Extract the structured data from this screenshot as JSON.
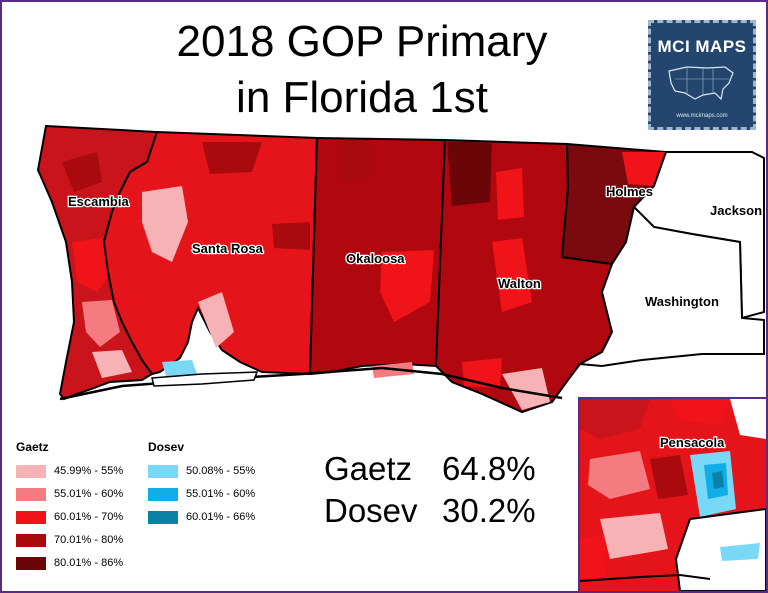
{
  "title": {
    "line1": "2018 GOP Primary",
    "line2": "in Florida 1st"
  },
  "logo": {
    "name": "MCI MAPS",
    "url": "www.mcimaps.com",
    "icon": "us-map-icon"
  },
  "counties": [
    {
      "id": "escambia",
      "label": "Escambia",
      "color": "#c8141a"
    },
    {
      "id": "santa-rosa",
      "label": "Santa Rosa",
      "color": "#e5141a"
    },
    {
      "id": "okaloosa",
      "label": "Okaloosa",
      "color": "#b0080e"
    },
    {
      "id": "walton",
      "label": "Walton",
      "color": "#b0080e"
    },
    {
      "id": "holmes",
      "label": "Holmes",
      "color": "#7a0a0e"
    },
    {
      "id": "jackson",
      "label": "Jackson",
      "color": "#ffffff"
    },
    {
      "id": "washington",
      "label": "Washington",
      "color": "#ffffff"
    }
  ],
  "inset": {
    "label": "Pensacola"
  },
  "legend": {
    "gaetz": {
      "title": "Gaetz",
      "items": [
        {
          "label": "45.99% - 55%",
          "color": "#f6b2b5"
        },
        {
          "label": "55.01% - 60%",
          "color": "#f47b80"
        },
        {
          "label": "60.01% - 70%",
          "color": "#f01319"
        },
        {
          "label": "70.01% - 80%",
          "color": "#a80a0e"
        },
        {
          "label": "80.01% - 86%",
          "color": "#6b0608"
        }
      ]
    },
    "dosev": {
      "title": "Dosev",
      "items": [
        {
          "label": "50.08% - 55%",
          "color": "#7ad8f7"
        },
        {
          "label": "55.01% - 60%",
          "color": "#10ade6"
        },
        {
          "label": "60.01% - 66%",
          "color": "#0b82a4"
        }
      ]
    }
  },
  "results": [
    {
      "candidate": "Gaetz",
      "share": "64.8%"
    },
    {
      "candidate": "Dosev",
      "share": "30.2%"
    }
  ],
  "colors": {
    "frame": "#5b2a86",
    "water": "#ffffff"
  }
}
